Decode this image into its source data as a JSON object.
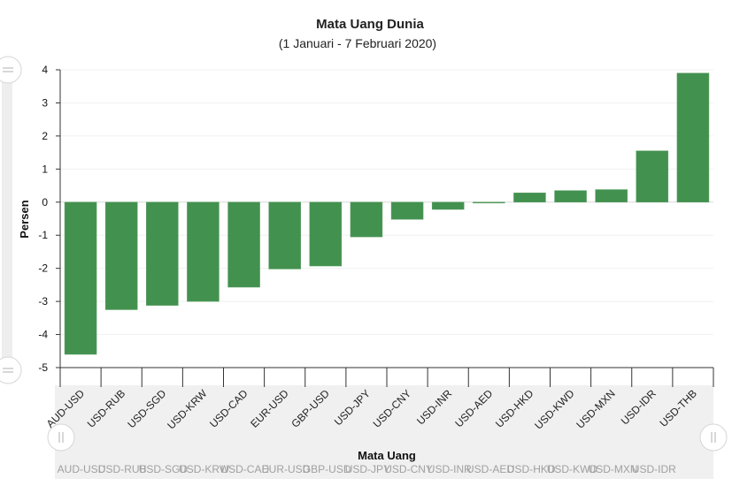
{
  "chart_data": {
    "type": "bar",
    "title": "Mata Uang Dunia",
    "subtitle": "(1 Januari - 7 Februari 2020)",
    "xlabel": "Mata Uang",
    "ylabel": "Persen",
    "ylim": [
      -5,
      4
    ],
    "yticks": [
      "4",
      "3",
      "2",
      "1",
      "0",
      "-1",
      "-2",
      "-3",
      "-4",
      "-5"
    ],
    "grid": true,
    "bar_color": "#43914f",
    "categories": [
      "AUD-USD",
      "USD-RUB",
      "USD-SGD",
      "USD-KRW",
      "USD-CAD",
      "EUR-USD",
      "GBP-USD",
      "USD-JPY",
      "USD-CNY",
      "USD-INR",
      "USD-AED",
      "USD-HKD",
      "USD-KWD",
      "USD-MXN",
      "USD-IDR",
      "USD-THB"
    ],
    "values": [
      -4.6,
      -3.25,
      -3.12,
      -3.0,
      -2.57,
      -2.02,
      -1.93,
      -1.05,
      -0.52,
      -0.22,
      0.0,
      0.28,
      0.35,
      0.38,
      1.55,
      3.9
    ]
  },
  "scrollbar": {
    "labels": [
      "AUD-USD",
      "USD-RUB",
      "USD-SGD",
      "USD-KRW",
      "USD-CAD",
      "EUR-USD",
      "GBP-USD",
      "USD-JPY",
      "USD-CNY",
      "USD-INR",
      "USD-AED",
      "USD-HKD",
      "USD-KWD",
      "USD-MXN",
      "USD-IDR"
    ],
    "track_color": "#eeeeee"
  }
}
